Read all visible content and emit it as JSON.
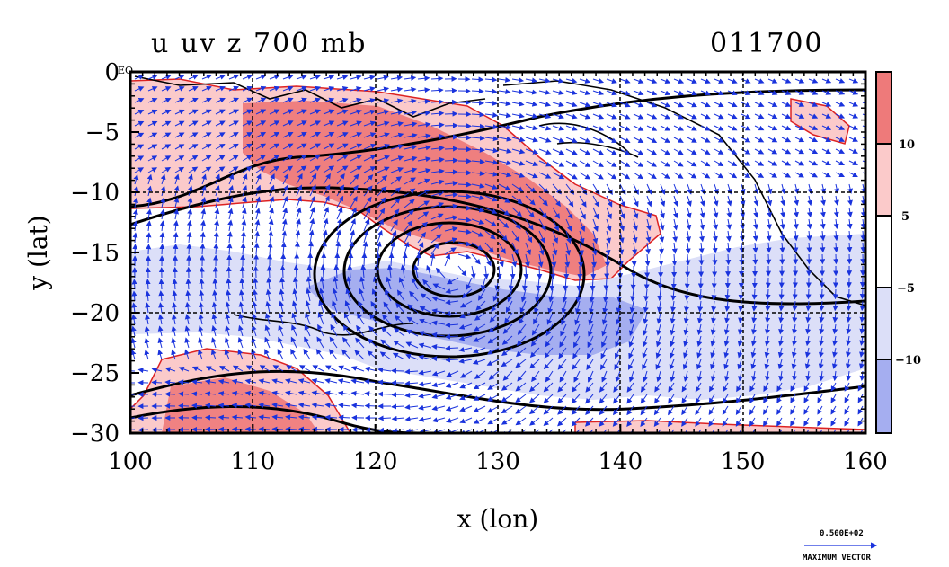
{
  "title": "u uv z 700 mb",
  "date_label": "011700",
  "eq_label": "EQ",
  "colors": {
    "strong_pos": "#ee7a7a",
    "weak_pos": "#fbcaca",
    "weak_neg": "#dcdff8",
    "strong_neg": "#a5aef0",
    "vector": "#1a33dd",
    "contour": "#000000",
    "zero_line": "#dd2222"
  },
  "chart_data": {
    "type": "heatmap",
    "xlabel": "x (lon)",
    "ylabel": "y (lat)",
    "xlim": [
      100,
      160
    ],
    "ylim": [
      -30,
      0
    ],
    "x_ticks": [
      100,
      110,
      120,
      130,
      140,
      150,
      160
    ],
    "y_ticks": [
      0,
      -5,
      -10,
      -15,
      -20,
      -25,
      -30
    ],
    "y_tick_labels": [
      "0",
      "−5",
      "−10",
      "−15",
      "−20",
      "−25",
      "−30"
    ],
    "grid": true,
    "colorbar": {
      "position": "right",
      "levels": [
        "10",
        "5",
        "−5",
        "−10"
      ]
    },
    "vector_reference": {
      "value_label": "0.500E+02",
      "caption": "MAXIMUM VECTOR"
    }
  }
}
